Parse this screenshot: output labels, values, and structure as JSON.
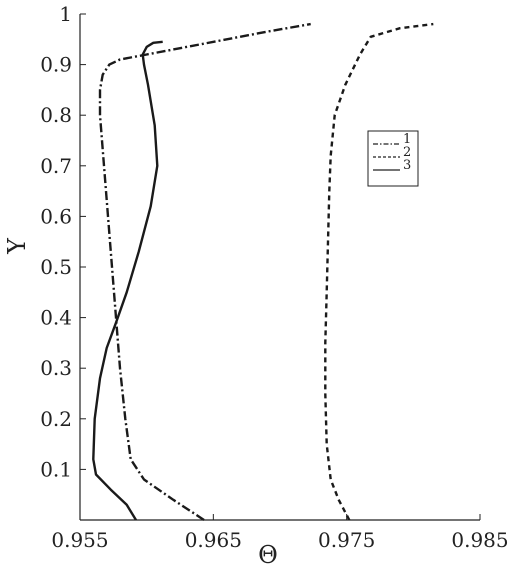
{
  "chart_data": {
    "type": "line",
    "xlabel": "Θ",
    "ylabel": "Y",
    "xlim": [
      0.955,
      0.985
    ],
    "ylim": [
      0,
      1
    ],
    "x_ticks": [
      "0.955",
      "0.965",
      "0.975",
      "0.985"
    ],
    "y_ticks": [
      "0.1",
      "0.2",
      "0.3",
      "0.4",
      "0.5",
      "0.6",
      "0.7",
      "0.8",
      "0.9",
      "1"
    ],
    "grid": false,
    "legend_position": "right",
    "legend": [
      "1",
      "2",
      "3"
    ],
    "series": [
      {
        "name": "1",
        "style": "dash-dot",
        "color": "#1a1a1a",
        "x": [
          0.9643,
          0.962,
          0.9598,
          0.9588,
          0.9584,
          0.958,
          0.9577,
          0.9574,
          0.9571,
          0.9568,
          0.9565,
          0.9565,
          0.9567,
          0.9572,
          0.958,
          0.96,
          0.964,
          0.969,
          0.9723
        ],
        "y": [
          0.0,
          0.04,
          0.08,
          0.12,
          0.2,
          0.3,
          0.4,
          0.5,
          0.6,
          0.7,
          0.8,
          0.85,
          0.88,
          0.9,
          0.91,
          0.92,
          0.94,
          0.965,
          0.98
        ]
      },
      {
        "name": "2",
        "style": "dashed",
        "color": "#1a1a1a",
        "x": [
          0.9752,
          0.9744,
          0.9738,
          0.9735,
          0.9734,
          0.9734,
          0.9735,
          0.9736,
          0.9737,
          0.9738,
          0.9741,
          0.9749,
          0.976,
          0.9768,
          0.979,
          0.9815
        ],
        "y": [
          0.0,
          0.04,
          0.08,
          0.15,
          0.25,
          0.35,
          0.45,
          0.55,
          0.65,
          0.72,
          0.8,
          0.86,
          0.92,
          0.955,
          0.972,
          0.98
        ]
      },
      {
        "name": "3",
        "style": "solid",
        "color": "#1a1a1a",
        "x": [
          0.9592,
          0.9585,
          0.9573,
          0.9562,
          0.956,
          0.9561,
          0.9565,
          0.957,
          0.9577,
          0.9585,
          0.9594,
          0.9603,
          0.9608,
          0.9606,
          0.9601,
          0.9598,
          0.9597,
          0.96,
          0.9605,
          0.9612
        ],
        "y": [
          0.0,
          0.03,
          0.06,
          0.09,
          0.12,
          0.2,
          0.28,
          0.34,
          0.39,
          0.45,
          0.53,
          0.62,
          0.7,
          0.78,
          0.86,
          0.9,
          0.92,
          0.935,
          0.943,
          0.945
        ]
      }
    ]
  }
}
